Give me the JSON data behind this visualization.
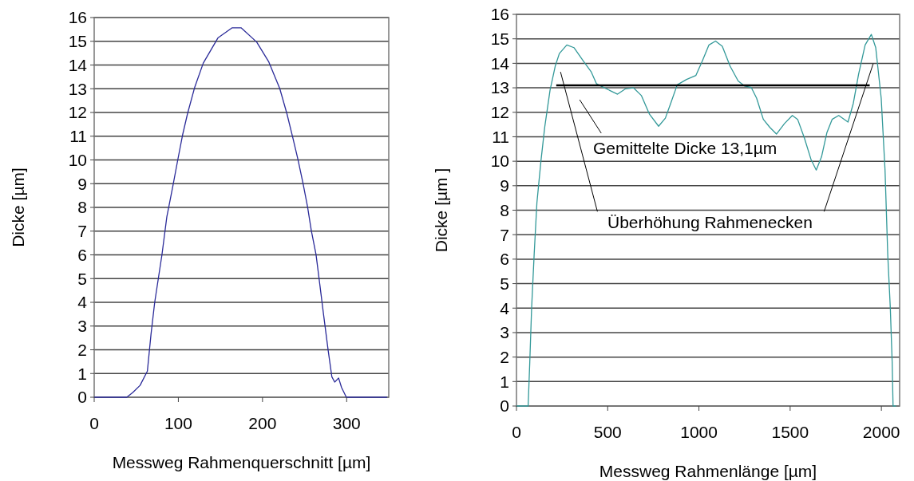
{
  "chart_data": [
    {
      "type": "line",
      "xlabel": "Messweg  Rahmenquerschnitt [µm]",
      "ylabel": "Dicke [µm]",
      "xlim": [
        0,
        350
      ],
      "xticks": [
        0,
        100,
        200,
        300
      ],
      "ylim": [
        0,
        16
      ],
      "yticks": [
        0,
        1,
        2,
        3,
        4,
        5,
        6,
        7,
        8,
        9,
        10,
        11,
        12,
        13,
        14,
        15,
        16
      ],
      "grid": "y",
      "series": [
        {
          "color": "#2b2b99",
          "x": [
            0,
            38.7,
            45.9,
            54.5,
            63.2,
            67.5,
            71.9,
            76.2,
            80.5,
            86.3,
            93.5,
            99.3,
            105,
            110.9,
            119.5,
            129.6,
            147,
            164,
            174.5,
            193,
            207.5,
            220.5,
            229,
            236,
            242,
            248,
            253.5,
            258,
            263.6,
            268,
            272.3,
            278,
            282.4,
            285.8,
            290.4,
            293.9,
            299.6,
            348
          ],
          "values": [
            0,
            0,
            0.2,
            0.5,
            1.1,
            2.65,
            4.0,
            5.0,
            6.0,
            7.6,
            8.9,
            10.0,
            11.05,
            11.95,
            13.07,
            14.08,
            15.14,
            15.57,
            15.57,
            14.97,
            14.13,
            13.01,
            11.95,
            10.94,
            10.04,
            9.04,
            8.03,
            7.02,
            6.01,
            4.78,
            3.55,
            1.98,
            0.86,
            0.64,
            0.81,
            0.41,
            0,
            0
          ]
        }
      ]
    },
    {
      "type": "line",
      "xlabel": "Messweg  Rahmenlänge [µm]",
      "ylabel": "Dicke [µm ]",
      "xlim": [
        0,
        2100
      ],
      "xticks": [
        0,
        500,
        1000,
        1500,
        2000
      ],
      "ylim": [
        0,
        16
      ],
      "yticks": [
        0,
        1,
        2,
        3,
        4,
        5,
        6,
        7,
        8,
        9,
        10,
        11,
        12,
        13,
        14,
        15,
        16
      ],
      "grid": "y",
      "series": [
        {
          "color": "#339999",
          "x": [
            0,
            64,
            73,
            83,
            97,
            112,
            134,
            155,
            184,
            213,
            235,
            276,
            315,
            366,
            409,
            438,
            482,
            554,
            598,
            641,
            685,
            729,
            779,
            816,
            845,
            881,
            932,
            983,
            1019,
            1055,
            1091,
            1128,
            1171,
            1215,
            1251,
            1287,
            1316,
            1353,
            1389,
            1425,
            1469,
            1512,
            1541,
            1578,
            1614,
            1643,
            1672,
            1701,
            1730,
            1766,
            1817,
            1846,
            1875,
            1911,
            1945,
            1969,
            1999,
            2020,
            2035,
            2049,
            2059,
            2064,
            2080
          ],
          "values": [
            0,
            0,
            1.8,
            4.0,
            6.2,
            8.3,
            10.0,
            11.4,
            12.9,
            13.9,
            14.4,
            14.75,
            14.64,
            14.1,
            13.66,
            13.17,
            13.0,
            12.74,
            12.96,
            13.0,
            12.68,
            11.92,
            11.43,
            11.76,
            12.36,
            13.12,
            13.34,
            13.5,
            14.1,
            14.75,
            14.91,
            14.7,
            13.88,
            13.28,
            13.07,
            13.01,
            12.58,
            11.71,
            11.38,
            11.11,
            11.54,
            11.87,
            11.71,
            10.95,
            10.08,
            9.64,
            10.18,
            11.16,
            11.71,
            11.87,
            11.6,
            12.36,
            13.55,
            14.75,
            15.18,
            14.64,
            12.58,
            9.64,
            6.16,
            3.99,
            1.82,
            0,
            0
          ]
        },
        {
          "type": "line",
          "color": "#000000",
          "x": [
            218,
            1936
          ],
          "values": [
            13.1,
            13.1
          ]
        }
      ],
      "annotations": [
        "Gemittelte Dicke 13,1µm",
        "Überhöhung Rahmenecken"
      ]
    }
  ]
}
